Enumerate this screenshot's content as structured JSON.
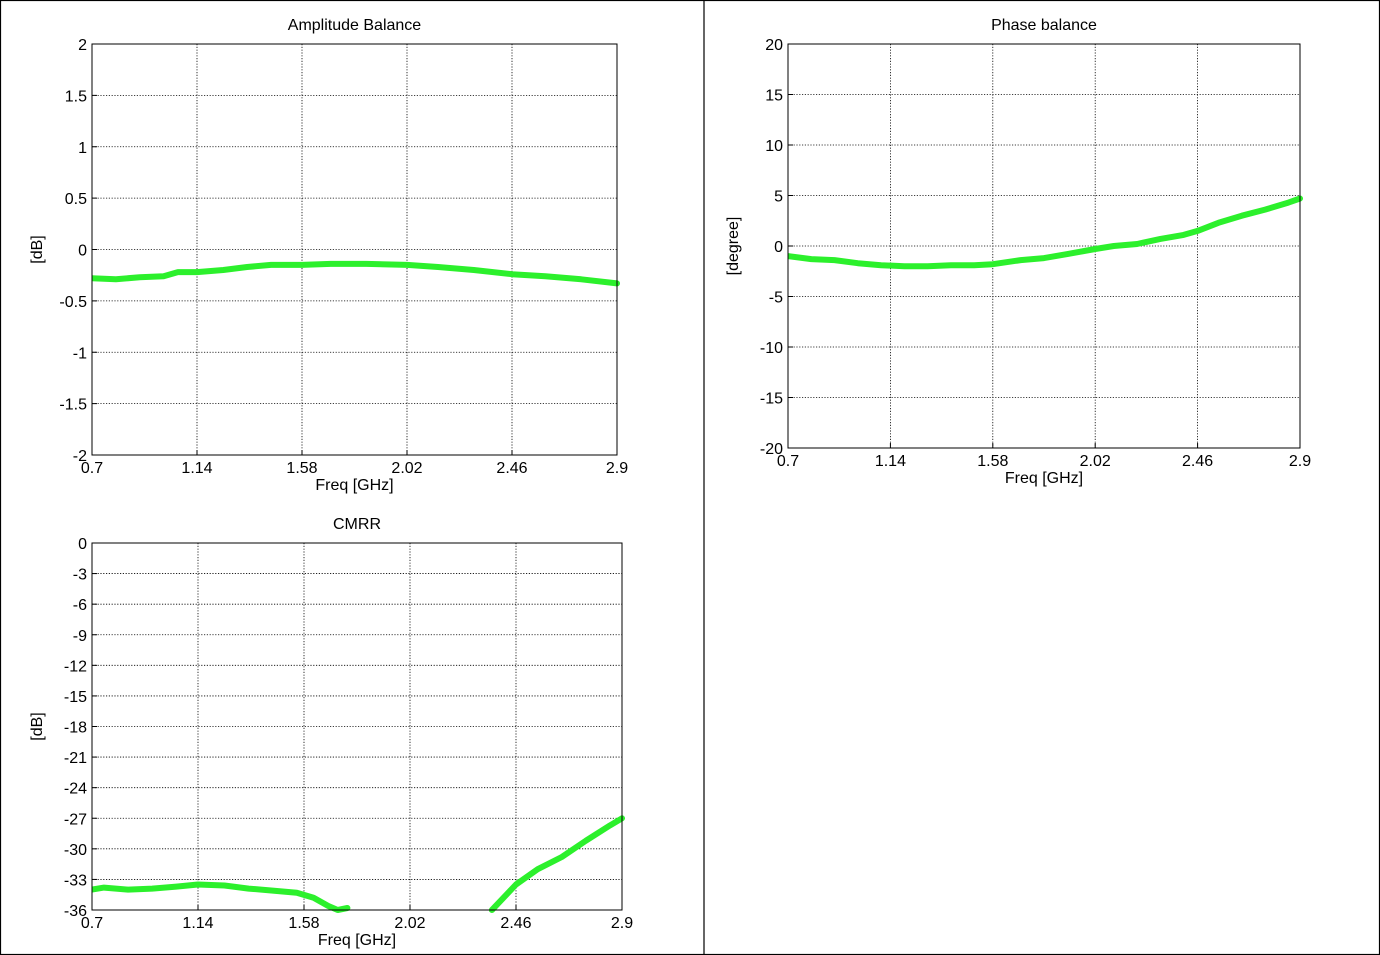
{
  "colors": {
    "trace": "#2cf02c",
    "grid": "#000000",
    "frame": "#000000"
  },
  "chart_data": [
    {
      "id": "amp",
      "type": "line",
      "title": "Amplitude Balance",
      "xlabel": "Freq [GHz]",
      "ylabel": "[dB]",
      "xlim": [
        0.7,
        2.9
      ],
      "ylim": [
        -2,
        2
      ],
      "xticks": [
        "0.7",
        "1.14",
        "1.58",
        "2.02",
        "2.46",
        "2.9"
      ],
      "yticks": [
        "2",
        "1.5",
        "1",
        "0.5",
        "0",
        "-0.5",
        "-1",
        "-1.5",
        "-2"
      ],
      "grid": true,
      "series": [
        {
          "x": [
            0.7,
            0.8,
            0.9,
            1.0,
            1.06,
            1.14,
            1.25,
            1.35,
            1.45,
            1.58,
            1.7,
            1.85,
            2.02,
            2.15,
            2.3,
            2.46,
            2.6,
            2.75,
            2.9
          ],
          "y": [
            -0.28,
            -0.29,
            -0.27,
            -0.26,
            -0.22,
            -0.22,
            -0.2,
            -0.17,
            -0.15,
            -0.15,
            -0.14,
            -0.14,
            -0.15,
            -0.17,
            -0.2,
            -0.24,
            -0.26,
            -0.29,
            -0.33
          ]
        }
      ]
    },
    {
      "id": "phase",
      "type": "line",
      "title": "Phase balance",
      "xlabel": "Freq [GHz]",
      "ylabel": "[degree]",
      "xlim": [
        0.7,
        2.9
      ],
      "ylim": [
        -20,
        20
      ],
      "xticks": [
        "0.7",
        "1.14",
        "1.58",
        "2.02",
        "2.46",
        "2.9"
      ],
      "yticks": [
        "20",
        "15",
        "10",
        "5",
        "0",
        "-5",
        "-10",
        "-15",
        "-20"
      ],
      "grid": true,
      "series": [
        {
          "x": [
            0.7,
            0.8,
            0.9,
            1.0,
            1.1,
            1.2,
            1.3,
            1.4,
            1.5,
            1.58,
            1.7,
            1.8,
            1.9,
            2.02,
            2.1,
            2.2,
            2.3,
            2.4,
            2.46,
            2.55,
            2.65,
            2.75,
            2.85,
            2.9
          ],
          "y": [
            -1.0,
            -1.3,
            -1.4,
            -1.7,
            -1.9,
            -2.0,
            -2.0,
            -1.9,
            -1.9,
            -1.8,
            -1.4,
            -1.2,
            -0.8,
            -0.3,
            0.0,
            0.2,
            0.7,
            1.1,
            1.5,
            2.3,
            3.0,
            3.6,
            4.3,
            4.7
          ]
        }
      ]
    },
    {
      "id": "cmrr",
      "type": "line",
      "title": "CMRR",
      "xlabel": "Freq [GHz]",
      "ylabel": "[dB]",
      "xlim": [
        0.7,
        2.9
      ],
      "ylim": [
        -36,
        0
      ],
      "xticks": [
        "0.7",
        "1.14",
        "1.58",
        "2.02",
        "2.46",
        "2.9"
      ],
      "yticks": [
        "0",
        "-3",
        "-6",
        "-9",
        "-12",
        "-15",
        "-18",
        "-21",
        "-24",
        "-27",
        "-30",
        "-33",
        "-36"
      ],
      "grid": true,
      "series": [
        {
          "x": [
            0.7,
            0.75,
            0.85,
            0.95,
            1.05,
            1.14,
            1.25,
            1.35,
            1.45,
            1.55,
            1.62,
            1.68,
            1.72,
            1.76
          ],
          "y": [
            -34.0,
            -33.8,
            -34.0,
            -33.9,
            -33.7,
            -33.5,
            -33.6,
            -33.9,
            -34.1,
            -34.3,
            -34.8,
            -35.6,
            -36.0,
            -35.8
          ]
        },
        {
          "x": [
            2.36,
            2.42,
            2.46,
            2.55,
            2.65,
            2.75,
            2.85,
            2.9
          ],
          "y": [
            -36.0,
            -34.5,
            -33.5,
            -32.0,
            -30.8,
            -29.2,
            -27.7,
            -27.0
          ]
        }
      ]
    }
  ]
}
